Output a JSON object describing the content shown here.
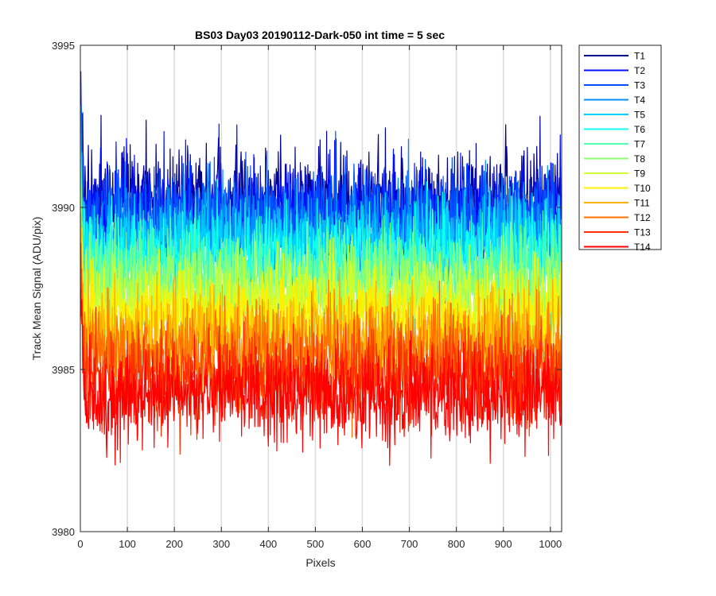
{
  "chart_data": {
    "type": "line",
    "title": "BS03 Day03 20190112-Dark-050 int time = 5 sec",
    "xlabel": "Pixels",
    "ylabel": "Track Mean Signal (ADU/pix)",
    "xlim": [
      0,
      1024
    ],
    "ylim": [
      3980,
      3995
    ],
    "xticks": [
      0,
      100,
      200,
      300,
      400,
      500,
      600,
      700,
      800,
      900,
      1000
    ],
    "yticks": [
      3980,
      3985,
      3990,
      3995
    ],
    "grid": "vertical",
    "legend_position": "outside-top-right",
    "x_points": 1024,
    "noise_description": "each trace is a dark-signal level plus random pixel-to-pixel noise; first pixels show a start-up spike",
    "series": [
      {
        "name": "T1",
        "mean": 3990.2,
        "noise_sd": 0.75,
        "color": "#00008f"
      },
      {
        "name": "T2",
        "mean": 3989.9,
        "noise_sd": 0.75,
        "color": "#0010ff"
      },
      {
        "name": "T3",
        "mean": 3989.6,
        "noise_sd": 0.75,
        "color": "#0050ff"
      },
      {
        "name": "T4",
        "mean": 3989.2,
        "noise_sd": 0.75,
        "color": "#0090ff"
      },
      {
        "name": "T5",
        "mean": 3988.8,
        "noise_sd": 0.75,
        "color": "#00cfff"
      },
      {
        "name": "T6",
        "mean": 3988.4,
        "noise_sd": 0.75,
        "color": "#10ffef"
      },
      {
        "name": "T7",
        "mean": 3988.0,
        "noise_sd": 0.75,
        "color": "#50ffaf"
      },
      {
        "name": "T8",
        "mean": 3987.6,
        "noise_sd": 0.75,
        "color": "#8fff70"
      },
      {
        "name": "T9",
        "mean": 3987.1,
        "noise_sd": 0.75,
        "color": "#cfff30"
      },
      {
        "name": "T10",
        "mean": 3986.6,
        "noise_sd": 0.75,
        "color": "#ffef00"
      },
      {
        "name": "T11",
        "mean": 3986.0,
        "noise_sd": 0.75,
        "color": "#ffaf00"
      },
      {
        "name": "T12",
        "mean": 3985.4,
        "noise_sd": 0.75,
        "color": "#ff7000"
      },
      {
        "name": "T13",
        "mean": 3984.8,
        "noise_sd": 0.75,
        "color": "#ff3000"
      },
      {
        "name": "T14",
        "mean": 3984.2,
        "noise_sd": 0.75,
        "color": "#ff0000"
      }
    ]
  }
}
